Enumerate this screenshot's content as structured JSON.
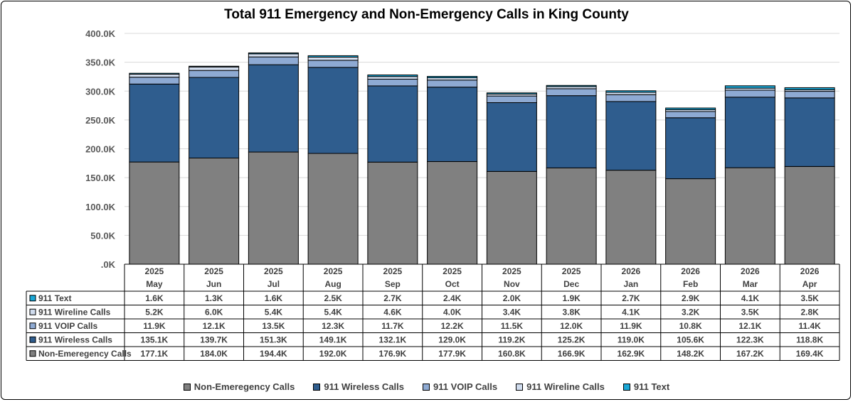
{
  "chart_data": {
    "type": "bar",
    "stacked": true,
    "title": "Total 911 Emergency and Non-Emergency Calls in King County",
    "ylim": [
      0,
      400000
    ],
    "ytick_labels": [
      ".0K",
      "50.0K",
      "100.0K",
      "150.0K",
      "200.0K",
      "250.0K",
      "300.0K",
      "350.0K",
      "400.0K"
    ],
    "categories": [
      {
        "year": "2025",
        "month": "May"
      },
      {
        "year": "2025",
        "month": "Jun"
      },
      {
        "year": "2025",
        "month": "Jul"
      },
      {
        "year": "2025",
        "month": "Aug"
      },
      {
        "year": "2025",
        "month": "Sep"
      },
      {
        "year": "2025",
        "month": "Oct"
      },
      {
        "year": "2025",
        "month": "Nov"
      },
      {
        "year": "2025",
        "month": "Dec"
      },
      {
        "year": "2026",
        "month": "Jan"
      },
      {
        "year": "2026",
        "month": "Feb"
      },
      {
        "year": "2026",
        "month": "Mar"
      },
      {
        "year": "2026",
        "month": "Apr"
      }
    ],
    "series": [
      {
        "name": "Non-Emeregency Calls",
        "color": "#808080",
        "values": [
          177100,
          184000,
          194400,
          192000,
          176900,
          177900,
          160800,
          166900,
          162900,
          148200,
          167200,
          169400
        ],
        "labels": [
          "177.1K",
          "184.0K",
          "194.4K",
          "192.0K",
          "176.9K",
          "177.9K",
          "160.8K",
          "166.9K",
          "162.9K",
          "148.2K",
          "167.2K",
          "169.4K"
        ]
      },
      {
        "name": "911 Wireless Calls",
        "color": "#2f5d8e",
        "values": [
          135100,
          139700,
          151300,
          149100,
          132100,
          129000,
          119200,
          125200,
          119000,
          105600,
          122300,
          118800
        ],
        "labels": [
          "135.1K",
          "139.7K",
          "151.3K",
          "149.1K",
          "132.1K",
          "129.0K",
          "119.2K",
          "125.2K",
          "119.0K",
          "105.6K",
          "122.3K",
          "118.8K"
        ]
      },
      {
        "name": "911 VOIP Calls",
        "color": "#8eaad3",
        "values": [
          11900,
          12100,
          13500,
          12300,
          11700,
          12200,
          11500,
          12000,
          11900,
          10800,
          12100,
          11400
        ],
        "labels": [
          "11.9K",
          "12.1K",
          "13.5K",
          "12.3K",
          "11.7K",
          "12.2K",
          "11.5K",
          "12.0K",
          "11.9K",
          "10.8K",
          "12.1K",
          "11.4K"
        ]
      },
      {
        "name": "911 Wireline Calls",
        "color": "#d0dcee",
        "values": [
          5200,
          6000,
          5400,
          5400,
          4600,
          4000,
          3400,
          3800,
          4100,
          3200,
          3500,
          2800
        ],
        "labels": [
          "5.2K",
          "6.0K",
          "5.4K",
          "5.4K",
          "4.6K",
          "4.0K",
          "3.4K",
          "3.8K",
          "4.1K",
          "3.2K",
          "3.5K",
          "2.8K"
        ]
      },
      {
        "name": "911 Text",
        "color": "#1aa7d6",
        "values": [
          1600,
          1300,
          1600,
          2500,
          2700,
          2400,
          2000,
          1900,
          2700,
          2900,
          4100,
          3500
        ],
        "labels": [
          "1.6K",
          "1.3K",
          "1.6K",
          "2.5K",
          "2.7K",
          "2.4K",
          "2.0K",
          "1.9K",
          "2.7K",
          "2.9K",
          "4.1K",
          "3.5K"
        ]
      }
    ],
    "table_row_order": [
      "911 Text",
      "911 Wireline Calls",
      "911 VOIP Calls",
      "911 Wireless Calls",
      "Non-Emeregency Calls"
    ],
    "legend_position": "bottom",
    "gridlines": true
  }
}
